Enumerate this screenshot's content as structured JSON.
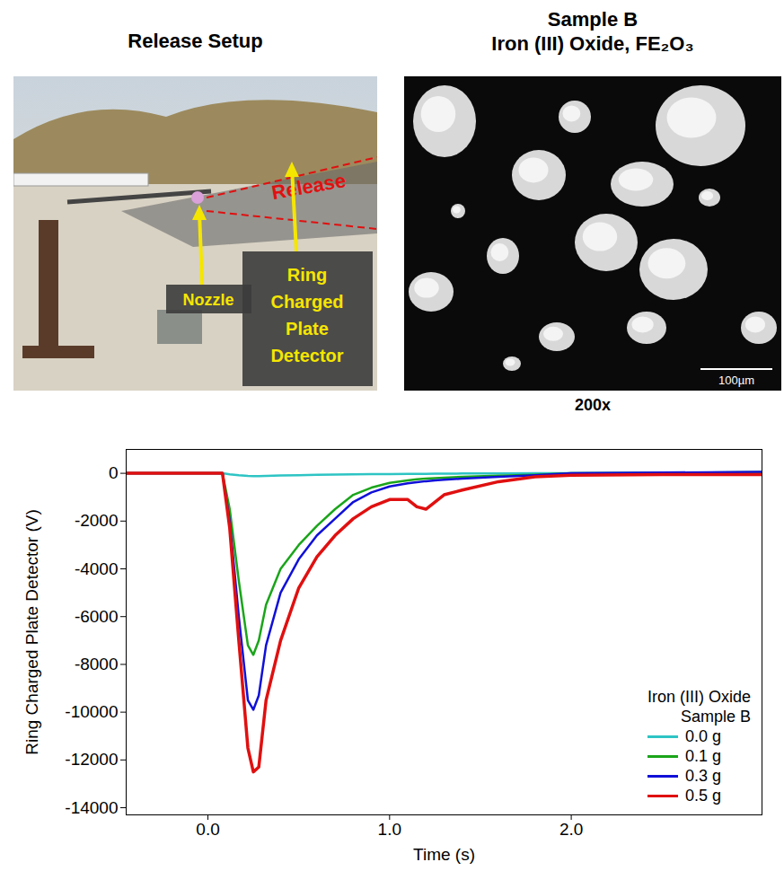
{
  "panels": [
    {
      "title": "Release Setup",
      "annotations": [
        "Release",
        "Nozzle",
        "Ring Charged Plate Detector"
      ]
    },
    {
      "title": "Sample B",
      "subtitle": "Iron (III) Oxide, FE₂O₃",
      "scale_bar": "100µm",
      "caption": "200x"
    }
  ],
  "chart_data": {
    "type": "line",
    "xlabel": "Time (s)",
    "ylabel": "Ring Charged Plate Detector (V)",
    "legend_title": [
      "Iron (III) Oxide",
      "Sample B"
    ],
    "legend": "lower right",
    "grid": false,
    "xlim": [
      -0.45,
      3.05
    ],
    "xticks": [
      {
        "value": 0,
        "label": "0.0"
      },
      {
        "value": 1,
        "label": "1.0"
      },
      {
        "value": 2,
        "label": "2.0"
      }
    ],
    "ylim": [
      -14300,
      1000
    ],
    "yticks": [
      0,
      -2000,
      -4000,
      -6000,
      -8000,
      -10000,
      -12000,
      -14000
    ],
    "x": [
      -0.45,
      0.08,
      0.12,
      0.17,
      0.22,
      0.25,
      0.28,
      0.32,
      0.4,
      0.5,
      0.6,
      0.7,
      0.8,
      0.9,
      1.0,
      1.1,
      1.15,
      1.2,
      1.25,
      1.3,
      1.4,
      1.6,
      1.8,
      2.0,
      2.5,
      3.05
    ],
    "series": [
      {
        "name": "0.0 g",
        "color": "#2ec4c4",
        "values": [
          0,
          0,
          -40,
          -80,
          -110,
          -120,
          -115,
          -110,
          -90,
          -80,
          -65,
          -50,
          -40,
          -35,
          -30,
          -25,
          -20,
          -20,
          -15,
          -15,
          -10,
          -5,
          0,
          0,
          0,
          0
        ]
      },
      {
        "name": "0.1 g",
        "color": "#1aa51a",
        "values": [
          0,
          0,
          -1500,
          -4500,
          -7200,
          -7600,
          -7000,
          -5500,
          -4000,
          -3000,
          -2200,
          -1500,
          -900,
          -600,
          -400,
          -300,
          -250,
          -220,
          -200,
          -180,
          -150,
          -100,
          -60,
          0,
          20,
          50
        ]
      },
      {
        "name": "0.3 g",
        "color": "#1010d8",
        "values": [
          0,
          0,
          -2000,
          -6000,
          -9500,
          -9900,
          -9300,
          -7200,
          -5000,
          -3600,
          -2600,
          -1900,
          -1200,
          -800,
          -550,
          -420,
          -370,
          -330,
          -300,
          -270,
          -220,
          -150,
          -80,
          0,
          30,
          60
        ]
      },
      {
        "name": "0.5 g",
        "color": "#e01010",
        "values": [
          0,
          0,
          -2300,
          -7000,
          -11500,
          -12500,
          -12300,
          -9500,
          -7000,
          -4800,
          -3500,
          -2600,
          -1900,
          -1400,
          -1100,
          -1100,
          -1400,
          -1500,
          -1200,
          -900,
          -700,
          -350,
          -150,
          -80,
          -50,
          -50
        ]
      }
    ]
  }
}
